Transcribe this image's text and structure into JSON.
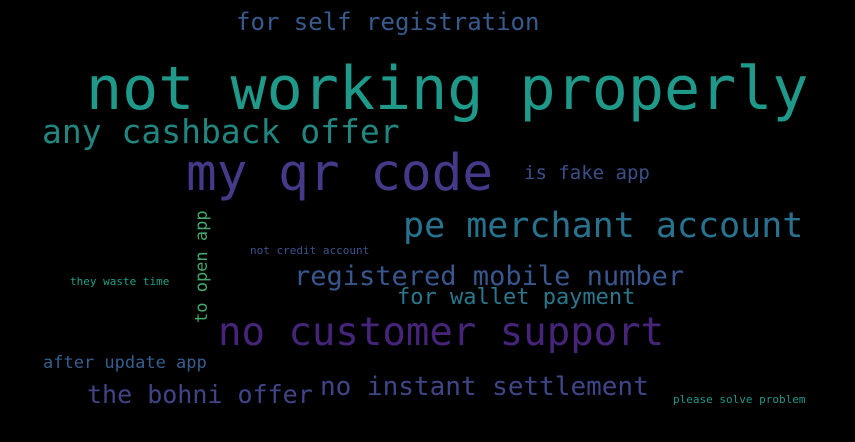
{
  "words": [
    {
      "text": "not working properly",
      "color": "#1f9a8a"
    },
    {
      "text": "my qr code",
      "color": "#453a8a"
    },
    {
      "text": "no customer support",
      "color": "#46247a"
    },
    {
      "text": "pe merchant account",
      "color": "#29728e"
    },
    {
      "text": "any cashback offer",
      "color": "#21867f"
    },
    {
      "text": "registered mobile number",
      "color": "#39578c"
    },
    {
      "text": "no instant settlement",
      "color": "#3f4688"
    },
    {
      "text": "the bohni offer",
      "color": "#414487"
    },
    {
      "text": "for self registration",
      "color": "#375b8d"
    },
    {
      "text": "for wallet payment",
      "color": "#2a788e"
    },
    {
      "text": "is fake app",
      "color": "#3c4f8a"
    },
    {
      "text": "after update app",
      "color": "#355f8d"
    },
    {
      "text": "to open app",
      "color": "#44a96d"
    },
    {
      "text": "not credit account",
      "color": "#3b528b"
    },
    {
      "text": "they waste time",
      "color": "#1fa187"
    },
    {
      "text": "please solve problem",
      "color": "#22968b"
    }
  ]
}
